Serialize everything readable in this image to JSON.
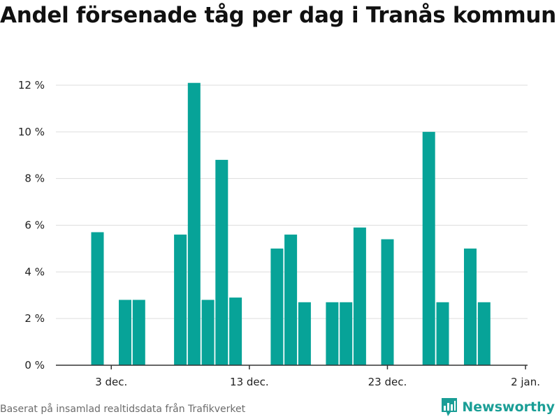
{
  "title": "Andel försenade tåg per dag i Tranås kommun",
  "source": "Baserat på insamlad realtidsdata från Trafikverket",
  "brand": {
    "name": "Newsworthy",
    "icon": "bar-chart-icon",
    "color": "#1a9e96"
  },
  "colors": {
    "bar": "#07a398",
    "grid": "#dddddd",
    "axis": "#333333"
  },
  "chart_data": {
    "type": "bar",
    "title": "Andel försenade tåg per dag i Tranås kommun",
    "xlabel": "",
    "ylabel": "",
    "x_ticks": [
      "3 dec.",
      "13 dec.",
      "23 dec.",
      "2 jan."
    ],
    "y_ticks": [
      "0 %",
      "2 %",
      "4 %",
      "6 %",
      "8 %",
      "10 %",
      "12 %"
    ],
    "ylim": [
      0,
      12.5
    ],
    "grid": true,
    "series": [
      {
        "values": [
          {
            "x": "2 dec.",
            "y": 5.7
          },
          {
            "x": "4 dec.",
            "y": 2.8
          },
          {
            "x": "5 dec.",
            "y": 2.8
          },
          {
            "x": "8 dec.",
            "y": 5.6
          },
          {
            "x": "9 dec.",
            "y": 12.1
          },
          {
            "x": "10 dec.",
            "y": 2.8
          },
          {
            "x": "11 dec.",
            "y": 8.8
          },
          {
            "x": "12 dec.",
            "y": 2.9
          },
          {
            "x": "15 dec.",
            "y": 5.0
          },
          {
            "x": "16 dec.",
            "y": 5.6
          },
          {
            "x": "17 dec.",
            "y": 2.7
          },
          {
            "x": "19 dec.",
            "y": 2.7
          },
          {
            "x": "20 dec.",
            "y": 2.7
          },
          {
            "x": "21 dec.",
            "y": 5.9
          },
          {
            "x": "23 dec.",
            "y": 5.4
          },
          {
            "x": "26 dec.",
            "y": 10.0
          },
          {
            "x": "27 dec.",
            "y": 2.7
          },
          {
            "x": "29 dec.",
            "y": 5.0
          },
          {
            "x": "30 dec.",
            "y": 2.7
          }
        ]
      }
    ]
  }
}
